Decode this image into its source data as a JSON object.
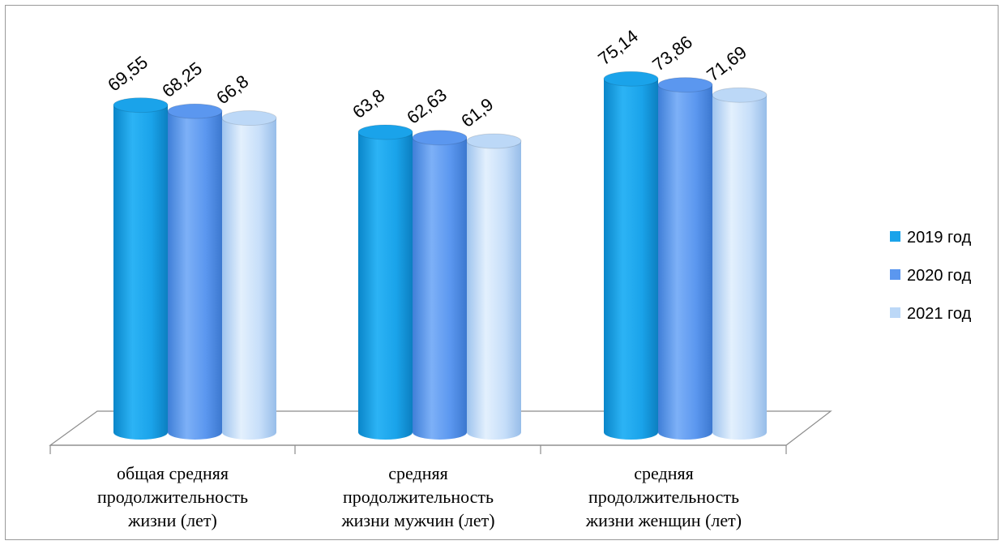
{
  "chart_data": {
    "type": "bar",
    "title": "",
    "xlabel": "",
    "ylabel": "",
    "ylim": [
      0,
      80
    ],
    "grid": false,
    "legend_position": "right",
    "categories": [
      [
        "общая средняя",
        "продолжительность",
        "жизни (лет)"
      ],
      [
        "средняя",
        "продолжительность",
        "жизни мужчин (лет)"
      ],
      [
        "средняя",
        "продолжительность",
        "жизни женщин (лет)"
      ]
    ],
    "series": [
      {
        "name": "2019 год",
        "color": "#1aa3ea",
        "values": [
          69.55,
          63.8,
          75.14
        ],
        "labels": [
          "69,55",
          "63,8",
          "75,14"
        ]
      },
      {
        "name": "2020 год",
        "color": "#5b97ef",
        "values": [
          68.25,
          62.63,
          73.86
        ],
        "labels": [
          "68,25",
          "62,63",
          "73,86"
        ]
      },
      {
        "name": "2021 год",
        "color": "#bcd8f7",
        "values": [
          66.8,
          61.9,
          71.69
        ],
        "labels": [
          "66,8",
          "61,9",
          "71,69"
        ]
      }
    ]
  }
}
